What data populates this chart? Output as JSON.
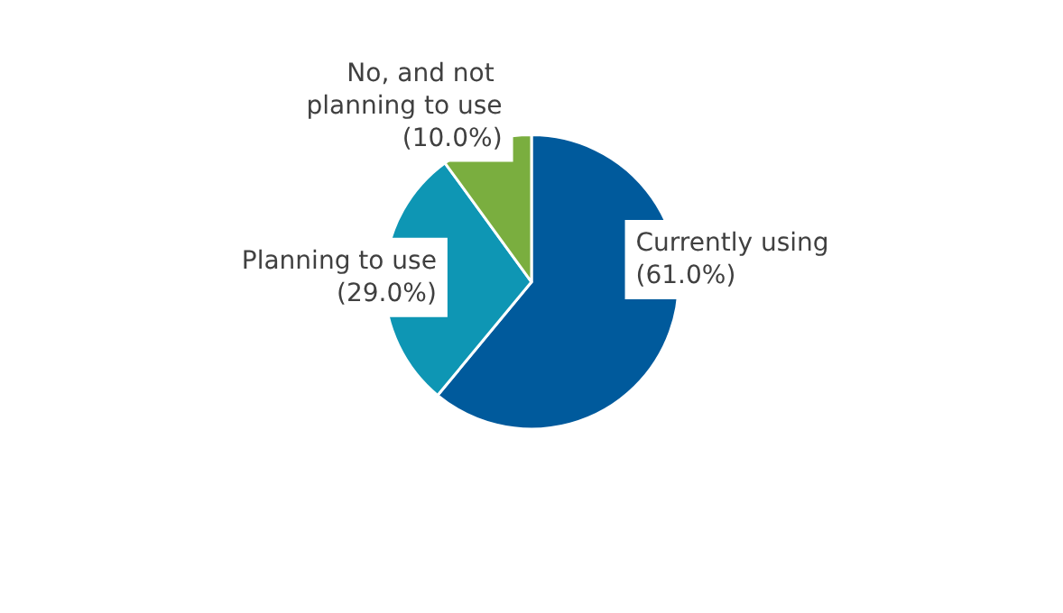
{
  "chart_data": {
    "type": "pie",
    "categories": [
      "Currently using",
      "Planning to use",
      "No, and not planning to use"
    ],
    "values": [
      61.0,
      29.0,
      10.0
    ],
    "colors": [
      "#005a9c",
      "#0e96b4",
      "#7aae3f"
    ],
    "value_labels": [
      "(61.0%)",
      "(29.0%)",
      "(10.0%)"
    ],
    "legend": false
  }
}
